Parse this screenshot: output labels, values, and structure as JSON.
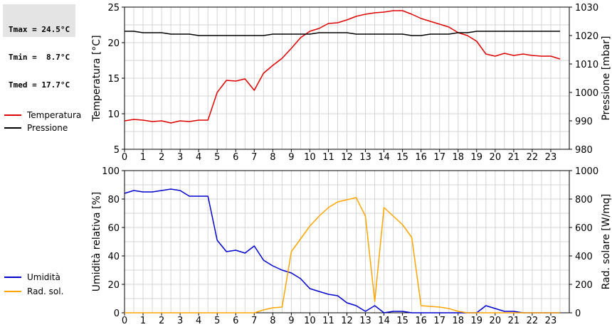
{
  "stats": [
    {
      "label": "Tmax",
      "value": "24.5°C"
    },
    {
      "label": "Tmin",
      "value": " 8.7°C"
    },
    {
      "label": "Tmed",
      "value": "17.7°C"
    }
  ],
  "chart_data": [
    {
      "type": "line",
      "xlim": [
        0,
        24
      ],
      "x_ticks": [
        0,
        1,
        2,
        3,
        4,
        5,
        6,
        7,
        8,
        9,
        10,
        11,
        12,
        13,
        14,
        15,
        16,
        17,
        18,
        19,
        20,
        21,
        22,
        23
      ],
      "y_left": {
        "label": "Temperatura [°C]",
        "range": [
          5,
          25
        ],
        "ticks": [
          5,
          10,
          15,
          20,
          25
        ]
      },
      "y_right": {
        "label": "Pressione [mbar]",
        "range": [
          980,
          1030
        ],
        "ticks": [
          980,
          990,
          1000,
          1010,
          1020,
          1030
        ]
      },
      "grid": true,
      "legend_placement": "left",
      "series": [
        {
          "name": "Temperatura",
          "axis": "left",
          "color": "#dd0000",
          "x": [
            0,
            0.5,
            1,
            1.5,
            2,
            2.5,
            3,
            3.5,
            4,
            4.5,
            5,
            5.5,
            6,
            6.5,
            7,
            7.5,
            8,
            8.5,
            9,
            9.5,
            10,
            10.5,
            11,
            11.5,
            12,
            12.5,
            13,
            13.5,
            14,
            14.5,
            15,
            15.5,
            16,
            16.5,
            17,
            17.5,
            18,
            18.5,
            19,
            19.5,
            20,
            20.5,
            21,
            21.5,
            22,
            22.5,
            23,
            23.5
          ],
          "y": [
            9.0,
            9.2,
            9.1,
            8.9,
            9.0,
            8.7,
            9.0,
            8.9,
            9.1,
            9.1,
            13.0,
            14.7,
            14.6,
            14.9,
            13.3,
            15.7,
            16.8,
            17.8,
            19.2,
            20.7,
            21.6,
            22.0,
            22.7,
            22.8,
            23.2,
            23.7,
            24.0,
            24.2,
            24.3,
            24.5,
            24.5,
            24.0,
            23.4,
            23.0,
            22.6,
            22.2,
            21.4,
            21.0,
            20.2,
            18.4,
            18.1,
            18.5,
            18.2,
            18.4,
            18.2,
            18.1,
            18.1,
            17.7
          ]
        },
        {
          "name": "Pressione",
          "axis": "right",
          "color": "#000000",
          "x": [
            0,
            0.5,
            1,
            1.5,
            2,
            2.5,
            3,
            3.5,
            4,
            4.5,
            5,
            5.5,
            6,
            6.5,
            7,
            7.5,
            8,
            8.5,
            9,
            9.5,
            10,
            10.5,
            11,
            11.5,
            12,
            12.5,
            13,
            13.5,
            14,
            14.5,
            15,
            15.5,
            16,
            16.5,
            17,
            17.5,
            18,
            18.5,
            19,
            19.5,
            20,
            20.5,
            21,
            21.5,
            22,
            22.5,
            23,
            23.5
          ],
          "y": [
            1021.5,
            1021.5,
            1021,
            1021,
            1021,
            1020.5,
            1020.5,
            1020.5,
            1020,
            1020,
            1020,
            1020,
            1020,
            1020,
            1020,
            1020,
            1020.5,
            1020.5,
            1020.5,
            1020.5,
            1020.5,
            1021,
            1021,
            1021,
            1021,
            1020.5,
            1020.5,
            1020.5,
            1020.5,
            1020.5,
            1020.5,
            1020,
            1020,
            1020.5,
            1020.5,
            1020.5,
            1021,
            1021,
            1021.5,
            1021.5,
            1021.5,
            1021.5,
            1021.5,
            1021.5,
            1021.5,
            1021.5,
            1021.5,
            1021.5
          ]
        }
      ]
    },
    {
      "type": "line",
      "xlim": [
        0,
        24
      ],
      "x_ticks": [
        0,
        1,
        2,
        3,
        4,
        5,
        6,
        7,
        8,
        9,
        10,
        11,
        12,
        13,
        14,
        15,
        16,
        17,
        18,
        19,
        20,
        21,
        22,
        23
      ],
      "y_left": {
        "label": "Umidità relativa [%]",
        "range": [
          0,
          100
        ],
        "ticks": [
          0,
          20,
          40,
          60,
          80,
          100
        ]
      },
      "y_right": {
        "label": "Rad. solare [W/mq]",
        "range": [
          0,
          1000
        ],
        "ticks": [
          0,
          200,
          400,
          600,
          800,
          1000
        ]
      },
      "grid": true,
      "legend_placement": "left",
      "series": [
        {
          "name": "Umidità",
          "axis": "left",
          "color": "#0000cc",
          "x": [
            0,
            0.5,
            1,
            1.5,
            2,
            2.5,
            3,
            3.5,
            4,
            4.5,
            5,
            5.5,
            6,
            6.5,
            7,
            7.5,
            8,
            8.5,
            9,
            9.5,
            10,
            10.5,
            11,
            11.5,
            12,
            12.5,
            13,
            13.5,
            14,
            14.5,
            15,
            15.5,
            16,
            16.5,
            17,
            17.5,
            18,
            18.5,
            19,
            19.5,
            20,
            20.5,
            21,
            21.5,
            22,
            22.5,
            23,
            23.5
          ],
          "y": [
            84,
            86,
            85,
            85,
            86,
            87,
            86,
            82,
            82,
            82,
            51,
            43,
            44,
            42,
            47,
            37,
            33,
            30,
            28,
            24,
            17,
            15,
            13,
            12,
            7,
            5,
            1,
            5,
            0,
            1,
            1,
            0,
            0,
            0,
            0,
            0,
            0,
            0,
            0,
            5,
            3,
            1,
            1,
            0,
            0,
            0,
            0,
            0
          ]
        },
        {
          "name": "Rad. sol.",
          "axis": "right",
          "color": "#ffa500",
          "x": [
            0,
            0.5,
            1,
            1.5,
            2,
            2.5,
            3,
            3.5,
            4,
            4.5,
            5,
            5.5,
            6,
            6.5,
            7,
            7.5,
            8,
            8.5,
            9,
            9.5,
            10,
            10.5,
            11,
            11.5,
            12,
            12.5,
            13,
            13.5,
            14,
            14.5,
            15,
            15.5,
            16,
            16.5,
            17,
            17.5,
            18,
            18.5,
            19,
            19.5,
            20,
            20.5,
            21,
            21.5,
            22,
            22.5,
            23,
            23.5
          ],
          "y": [
            0,
            0,
            0,
            0,
            0,
            0,
            0,
            0,
            0,
            0,
            0,
            0,
            0,
            0,
            0,
            20,
            35,
            40,
            430,
            520,
            610,
            680,
            740,
            780,
            795,
            810,
            680,
            80,
            740,
            680,
            620,
            530,
            50,
            45,
            40,
            30,
            10,
            0,
            0,
            0,
            0,
            0,
            0,
            0,
            0,
            0,
            0,
            0
          ]
        }
      ]
    }
  ]
}
